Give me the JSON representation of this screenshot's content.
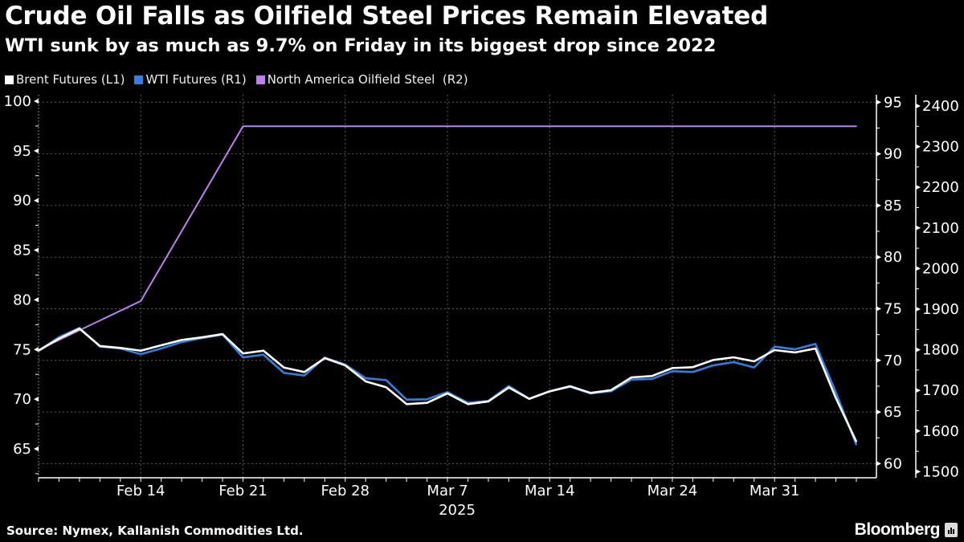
{
  "header": {
    "title": "Crude Oil Falls as Oilfield Steel Prices Remain Elevated",
    "subtitle": "WTI sunk by as much as 9.7% on Friday in its biggest drop since 2022"
  },
  "footer": {
    "source": "Source: Nymex, Kallanish Commodities Ltd.",
    "logo": "Bloomberg"
  },
  "chart_data": {
    "type": "line",
    "title": "Crude Oil Falls as Oilfield Steel Prices Remain Elevated",
    "subtitle": "WTI sunk by as much as 9.7% on Friday in its biggest drop since 2022",
    "background": "#000000",
    "legend_position": "top-left",
    "grid": true,
    "x": [
      "2025-02-07",
      "2025-02-10",
      "2025-02-11",
      "2025-02-12",
      "2025-02-13",
      "2025-02-14",
      "2025-02-17",
      "2025-02-18",
      "2025-02-19",
      "2025-02-20",
      "2025-02-21",
      "2025-02-24",
      "2025-02-25",
      "2025-02-26",
      "2025-02-27",
      "2025-02-28",
      "2025-03-03",
      "2025-03-04",
      "2025-03-05",
      "2025-03-06",
      "2025-03-07",
      "2025-03-10",
      "2025-03-11",
      "2025-03-12",
      "2025-03-13",
      "2025-03-14",
      "2025-03-17",
      "2025-03-18",
      "2025-03-19",
      "2025-03-20",
      "2025-03-21",
      "2025-03-24",
      "2025-03-25",
      "2025-03-26",
      "2025-03-27",
      "2025-03-28",
      "2025-03-31",
      "2025-04-01",
      "2025-04-02",
      "2025-04-03",
      "2025-04-04"
    ],
    "x_ticks": [
      {
        "index": 5,
        "label": "Feb 14"
      },
      {
        "index": 10,
        "label": "Feb 21"
      },
      {
        "index": 15,
        "label": "Feb 28"
      },
      {
        "index": 20,
        "label": "Mar 7"
      },
      {
        "index": 25,
        "label": "Mar 14"
      },
      {
        "index": 31,
        "label": "Mar 24"
      },
      {
        "index": 36,
        "label": "Mar 31"
      }
    ],
    "x_year_label": {
      "index": 20,
      "label": "2025"
    },
    "axes": {
      "L1": {
        "ylim": [
          63,
          101
        ],
        "ticks": [
          65,
          70,
          75,
          80,
          85,
          90,
          95,
          100
        ]
      },
      "R1": {
        "ylim": [
          58.5,
          96
        ],
        "ticks": [
          60,
          65,
          70,
          75,
          80,
          85,
          90,
          95
        ]
      },
      "R2": {
        "ylim": [
          1470,
          2420
        ],
        "ticks": [
          1500,
          1600,
          1700,
          1800,
          1900,
          2000,
          2100,
          2200,
          2300,
          2400
        ]
      }
    },
    "series": [
      {
        "name": "Brent Futures (L1)",
        "axis": "L1",
        "color": "#ffffff",
        "values": [
          74.88,
          76.1,
          77.1,
          75.35,
          75.16,
          74.88,
          75.42,
          75.96,
          76.23,
          76.55,
          74.6,
          74.88,
          73.18,
          72.73,
          74.13,
          73.4,
          71.79,
          71.2,
          69.5,
          69.63,
          70.58,
          69.5,
          69.77,
          71.17,
          70.03,
          70.79,
          71.3,
          70.63,
          70.9,
          72.19,
          72.33,
          73.13,
          73.22,
          73.94,
          74.21,
          73.81,
          74.94,
          74.7,
          75.1,
          70.1,
          65.72
        ]
      },
      {
        "name": "WTI Futures (R1)",
        "axis": "R1",
        "color": "#2f80e0",
        "values": [
          70.94,
          72.24,
          73.15,
          71.33,
          71.15,
          70.6,
          71.15,
          71.77,
          72.16,
          72.49,
          70.29,
          70.55,
          68.79,
          68.53,
          70.27,
          69.6,
          68.27,
          68.09,
          66.2,
          66.23,
          66.93,
          65.89,
          66.07,
          67.52,
          66.28,
          67.01,
          67.44,
          66.8,
          67.01,
          68.14,
          68.2,
          68.95,
          68.87,
          69.52,
          69.83,
          69.31,
          71.33,
          71.07,
          71.59,
          66.9,
          61.82
        ]
      },
      {
        "name": "North America Oilfield Steel  (R2)",
        "axis": "R2",
        "color": "#c07ef0",
        "points": [
          {
            "index": 0,
            "value": 1800
          },
          {
            "index": 5,
            "value": 1920
          },
          {
            "index": 10,
            "value": 2350
          },
          {
            "index": 15,
            "value": 2350
          },
          {
            "index": 20,
            "value": 2350
          },
          {
            "index": 25,
            "value": 2350
          },
          {
            "index": 30,
            "value": 2350
          },
          {
            "index": 35,
            "value": 2350
          },
          {
            "index": 40,
            "value": 2350
          }
        ]
      }
    ]
  }
}
